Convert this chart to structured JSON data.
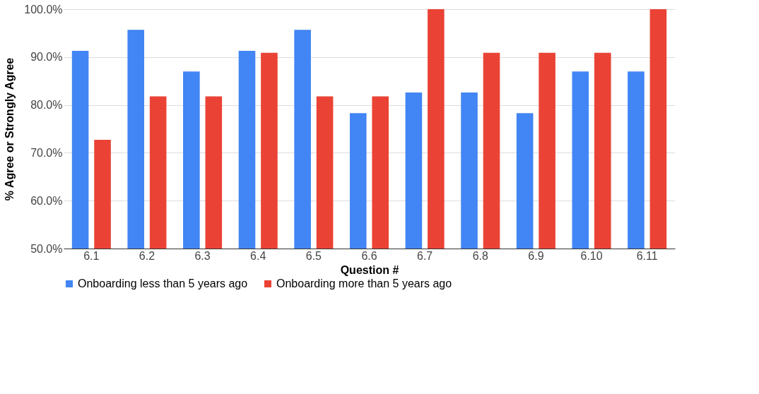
{
  "chart_data": {
    "type": "bar",
    "xlabel": "Question #",
    "ylabel": "% Agree or Strongly Agree",
    "categories": [
      "6.1",
      "6.2",
      "6.3",
      "6.4",
      "6.5",
      "6.6",
      "6.7",
      "6.8",
      "6.9",
      "6.10",
      "6.11"
    ],
    "series": [
      {
        "name": "Onboarding less than 5 years ago",
        "color": "#4285f4",
        "values": [
          91.3,
          95.7,
          87.0,
          91.3,
          95.7,
          78.3,
          82.6,
          82.6,
          78.3,
          87.0,
          87.0
        ]
      },
      {
        "name": "Onboarding more than 5 years ago",
        "color": "#ea4335",
        "values": [
          72.7,
          81.8,
          81.8,
          90.9,
          81.8,
          81.8,
          100,
          90.9,
          90.9,
          90.9,
          100
        ]
      }
    ],
    "ylim": [
      50,
      100
    ],
    "yticks": [
      {
        "value": 50,
        "label": "50.0%"
      },
      {
        "value": 60,
        "label": "60.0%"
      },
      {
        "value": 70,
        "label": "70.0%"
      },
      {
        "value": 80,
        "label": "80.0%"
      },
      {
        "value": 90,
        "label": "90.0%"
      },
      {
        "value": 100,
        "label": "100.0%"
      }
    ],
    "grid": "y",
    "legend": "bottom"
  }
}
